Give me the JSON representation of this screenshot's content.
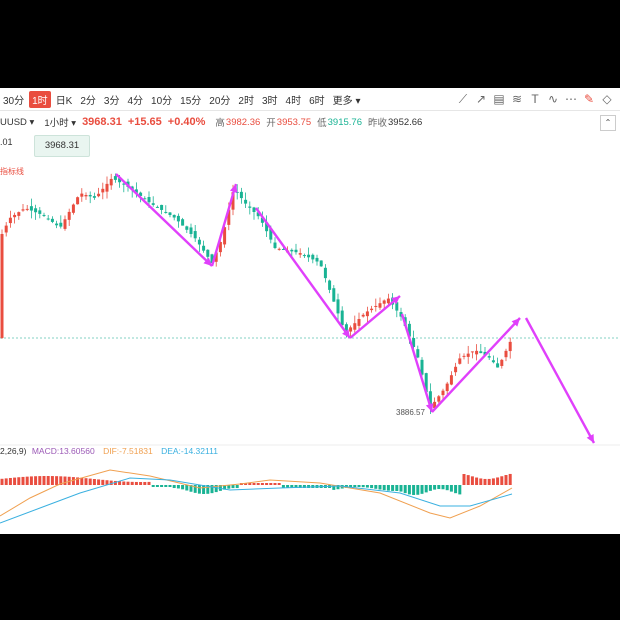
{
  "timeframes": [
    "30分",
    "1时",
    "日K",
    "2分",
    "3分",
    "4分",
    "10分",
    "15分",
    "20分",
    "2时",
    "3时",
    "4时",
    "6时",
    "更多"
  ],
  "active_timeframe": "1时",
  "tools": [
    "line-tool-icon",
    "ray-tool-icon",
    "channel-tool-icon",
    "fib-tool-icon",
    "text-tool-icon",
    "wave-tool-icon",
    "more-tools-icon",
    "edit-icon",
    "eraser-icon"
  ],
  "quote": {
    "symbol": "UUSD",
    "period": "1小时",
    "price": "3968.31",
    "change": "+15.65",
    "change_pct": "+0.40%",
    "high_label": "高",
    "high": "3982.36",
    "open_label": "开",
    "open": "3953.75",
    "low_label": "低",
    "low": "3915.76",
    "prev_label": "昨收",
    "prev": "3952.66"
  },
  "price_input": {
    "step_value": ".01",
    "value": "3968.31"
  },
  "indicator_link": "指标线",
  "low_marker": "3886.57",
  "macd": {
    "params": "2,26,9)",
    "macd_label": "MACD:13.60560",
    "dif_label": "DIF:-7.51831",
    "dea_label": "DEA:-14.32111"
  },
  "colors": {
    "up": "#e94d3f",
    "down": "#19b394",
    "arrow": "#e040fb",
    "dif": "#f0a050",
    "dea": "#3ab0e0"
  }
}
